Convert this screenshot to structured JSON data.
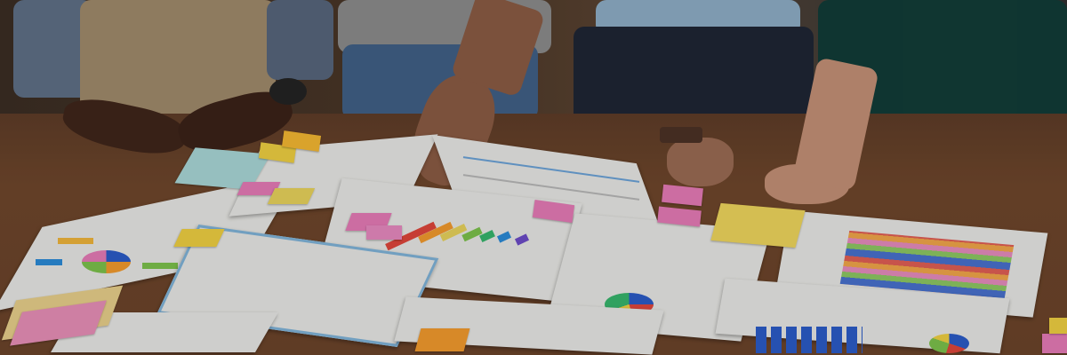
{
  "scene": {
    "description_elements": [
      "people",
      "wooden-table",
      "printed-documents",
      "sticky-notes",
      "charts"
    ],
    "colors": {
      "table": "#6e4529",
      "paper": "#e9e9e6",
      "sticky_pink": "#e67ab7",
      "sticky_yellow": "#e9d35a",
      "sticky_orange": "#f0b43a",
      "sticky_blue": "#a9d8d8",
      "chart_blue": "#2a5bc8",
      "chart_orange": "#f39a2c",
      "chart_green": "#7cc24a",
      "diagram_blue": "#7fb3d9"
    }
  }
}
